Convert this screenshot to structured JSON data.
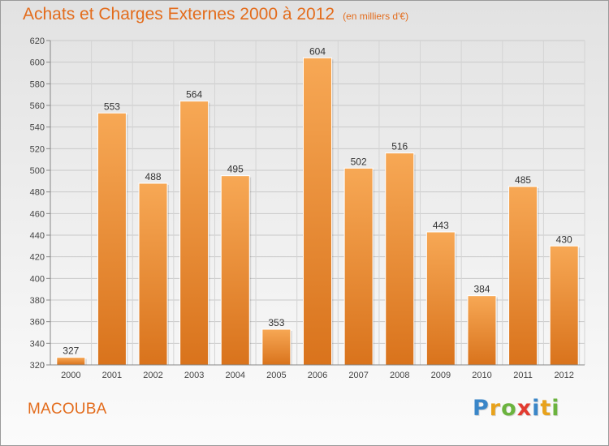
{
  "header": {
    "title": "Achats et Charges Externes 2000 à 2012",
    "subtitle": "(en milliers d'€)"
  },
  "footer": {
    "commune": "MACOUBA",
    "logo": {
      "letters": [
        "P",
        "r",
        "o",
        "x",
        "i",
        "t",
        "i"
      ],
      "colors": [
        "#3a86c8",
        "#e8a21b",
        "#6bb33e",
        "#e23b30",
        "#3a86c8",
        "#e8a21b",
        "#6bb33e"
      ]
    }
  },
  "chart_data": {
    "type": "bar",
    "categories": [
      "2000",
      "2001",
      "2002",
      "2003",
      "2004",
      "2005",
      "2006",
      "2007",
      "2008",
      "2009",
      "2010",
      "2011",
      "2012"
    ],
    "values": [
      327,
      553,
      488,
      564,
      495,
      353,
      604,
      502,
      516,
      443,
      384,
      485,
      430
    ],
    "yticks": [
      320,
      340,
      360,
      380,
      400,
      420,
      440,
      460,
      480,
      500,
      520,
      540,
      560,
      580,
      600,
      620
    ],
    "ylim": [
      320,
      620
    ],
    "grid": true,
    "bar_color": "#f29a3d",
    "bar_color_dark": "#d9751f"
  }
}
